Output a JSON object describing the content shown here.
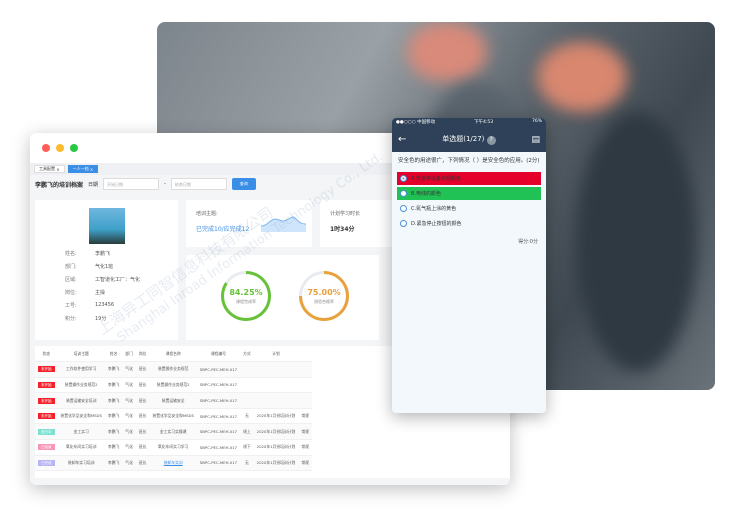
{
  "window": {
    "tabs": [
      "工具配置",
      "一人一档"
    ],
    "title": "李鹏飞的培训档案",
    "date_label": "日期",
    "start_placeholder": "开始日期",
    "end_placeholder": "结束日期",
    "separator": "-",
    "search_button": "查询"
  },
  "profile": {
    "fields": [
      {
        "k": "姓名:",
        "v": "李鹏飞"
      },
      {
        "k": "部门:",
        "v": "气化1班"
      },
      {
        "k": "区域:",
        "v": "工智道化工厂：气化"
      },
      {
        "k": "岗位:",
        "v": "主操"
      },
      {
        "k": "工号:",
        "v": "123456"
      },
      {
        "k": "积分:",
        "v": "19分"
      }
    ]
  },
  "stats": {
    "topic_label": "培训主题:",
    "topic_value": "已完成10/应完成12",
    "hours_label": "计划学习时长",
    "hours_value": "1时34分"
  },
  "rings": [
    {
      "value": "84.25%",
      "label": "课程完成率",
      "percent": 84.25,
      "color": "#67c23a"
    },
    {
      "value": "75.00%",
      "label": "测验合格率",
      "percent": 75,
      "color": "#e6a23c"
    }
  ],
  "table": {
    "headers": [
      "状态",
      "培训主题",
      "姓名",
      "部门",
      "岗位",
      "课程名称",
      "课程编号",
      "方式",
      "计划",
      ""
    ],
    "rows": [
      {
        "status": "未开始",
        "sc": "#f5222d",
        "c": [
          "工作软件使用学习",
          "李鹏飞",
          "气化",
          "班长",
          "装置操作业务规范",
          "SBPC-PEC-MEH-017",
          "",
          "",
          ""
        ]
      },
      {
        "status": "未开始",
        "sc": "#f5222d",
        "c": [
          "装置操作业务规范2",
          "李鹏飞",
          "气化",
          "班长",
          "装置操作业务规范2",
          "SBPC-PEC-MEH-017",
          "",
          "",
          ""
        ]
      },
      {
        "status": "未开始",
        "sc": "#f5222d",
        "c": [
          "装置运输安全培训",
          "李鹏飞",
          "气化",
          "班长",
          "装置运输安全",
          "SBPC-PEC-MEH-017",
          "",
          "",
          ""
        ]
      },
      {
        "status": "未开始",
        "sc": "#f5222d",
        "c": [
          "装置化学品安全和MSDS",
          "李鹏飞",
          "气化",
          "班长",
          "装置化学品安全和MSDS",
          "SBPC-PEC-MEH-017",
          "无",
          "2020年1月份培训计划",
          "常规"
        ]
      },
      {
        "status": "进行中",
        "sc": "#7ee0d0",
        "c": [
          "金工实习",
          "李鹏飞",
          "气化",
          "班长",
          "金工实习实操课",
          "SBPC-PEC-MEH-017",
          "线上",
          "2020年1月份培训计划",
          "常规"
        ]
      },
      {
        "status": "已结束",
        "sc": "#f797b5",
        "c": [
          "氧化车间实习培训",
          "李鹏飞",
          "气化",
          "班长",
          "氧化车间实习学习",
          "SBPC-PEC-MEH-017",
          "线下",
          "2020年1月份培训计划",
          "常规"
        ]
      },
      {
        "status": "已完成",
        "sc": "#b8b5f5",
        "c": [
          "装卸车实习培训",
          "李鹏飞",
          "气化",
          "班长",
          "装卸车实训",
          "SBPC-PEC-MEH-017",
          "无",
          "2020年1月份培训计划",
          "常规"
        ]
      }
    ]
  },
  "phone": {
    "carrier": "●●○○○ 中国移动",
    "time": "下午4:53",
    "battery": "76%",
    "title": "单选题(1/27)",
    "question": "安全色的用途很广，下列情况（ ）是安全色的应用。(2分)",
    "options": [
      {
        "text": "A.管道等设备外观颜色",
        "bg": "#e4002b",
        "selected": true
      },
      {
        "text": "B.电线的颜色",
        "bg": "#21c255",
        "selected": false
      },
      {
        "text": "C.氮气瓶上涂的黄色",
        "bg": "",
        "selected": false
      },
      {
        "text": "D.紧急停止按钮的颜色",
        "bg": "",
        "selected": false
      }
    ],
    "score": "得分:0分"
  },
  "watermark": {
    "cn": "上海异工同智信息科技有限公司",
    "en": "Shanghai Inroad Information Technology Co., Ltd."
  }
}
